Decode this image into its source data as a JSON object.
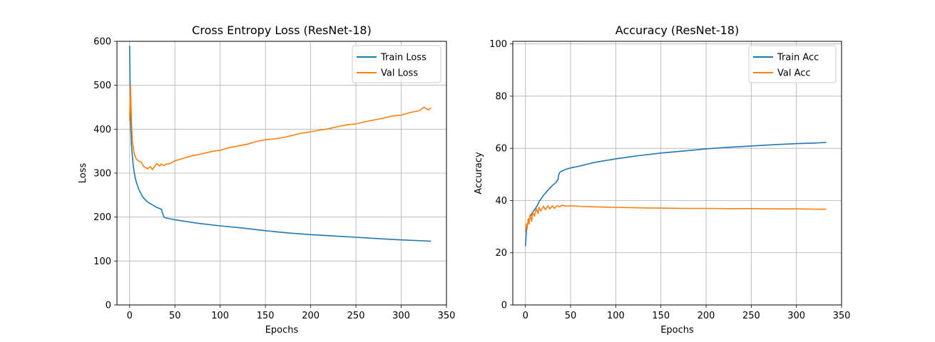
{
  "colors": {
    "train": "#1f77b4",
    "val": "#ff7f0e",
    "grid": "#b0b0b0"
  },
  "chart_data": [
    {
      "type": "line",
      "title": "Cross Entropy Loss (ResNet-18)",
      "xlabel": "Epochs",
      "ylabel": "Loss",
      "xlim": [
        -14,
        350
      ],
      "ylim": [
        0,
        600
      ],
      "xticks": [
        "0",
        "50",
        "100",
        "150",
        "200",
        "250",
        "300",
        "350"
      ],
      "yticks": [
        "0",
        "100",
        "200",
        "300",
        "400",
        "500",
        "600"
      ],
      "grid": true,
      "legend_position": "top-right",
      "series": [
        {
          "name": "Train Loss",
          "color": "#1f77b4",
          "x": [
            0,
            1,
            2,
            3,
            4,
            5,
            7,
            10,
            15,
            20,
            25,
            30,
            35,
            37,
            38,
            40,
            50,
            75,
            100,
            125,
            150,
            175,
            200,
            225,
            250,
            275,
            300,
            325,
            333
          ],
          "y": [
            590,
            420,
            365,
            338,
            318,
            302,
            282,
            263,
            244,
            234,
            228,
            222,
            218,
            205,
            200,
            198,
            194,
            186,
            180,
            175,
            169,
            164,
            160,
            157,
            154,
            151,
            148,
            146,
            145
          ]
        },
        {
          "name": "Val Loss",
          "color": "#ff7f0e",
          "x": [
            0,
            1,
            2,
            3,
            4,
            5,
            7,
            10,
            13,
            15,
            18,
            20,
            23,
            25,
            28,
            30,
            33,
            35,
            38,
            40,
            45,
            50,
            60,
            70,
            80,
            90,
            100,
            110,
            120,
            130,
            140,
            150,
            160,
            170,
            180,
            190,
            200,
            210,
            220,
            230,
            240,
            250,
            260,
            270,
            280,
            290,
            300,
            310,
            320,
            325,
            330,
            333
          ],
          "y": [
            420,
            500,
            420,
            372,
            360,
            345,
            333,
            327,
            325,
            316,
            312,
            310,
            315,
            308,
            316,
            322,
            316,
            321,
            317,
            320,
            322,
            328,
            334,
            340,
            344,
            349,
            352,
            358,
            362,
            366,
            372,
            376,
            378,
            381,
            386,
            391,
            394,
            398,
            401,
            406,
            410,
            412,
            417,
            421,
            425,
            430,
            432,
            438,
            442,
            450,
            444,
            449
          ]
        }
      ]
    },
    {
      "type": "line",
      "title": "Accuracy (ResNet-18)",
      "xlabel": "Epochs",
      "ylabel": "Accuracy",
      "xlim": [
        -14,
        350
      ],
      "ylim": [
        0,
        101
      ],
      "xticks": [
        "0",
        "50",
        "100",
        "150",
        "200",
        "250",
        "300",
        "350"
      ],
      "yticks": [
        "0",
        "20",
        "40",
        "60",
        "80",
        "100"
      ],
      "grid": true,
      "legend_position": "top-right",
      "series": [
        {
          "name": "Train Acc",
          "color": "#1f77b4",
          "x": [
            0,
            1,
            2,
            3,
            5,
            7,
            10,
            13,
            15,
            18,
            20,
            25,
            30,
            34,
            36,
            37,
            38,
            40,
            45,
            50,
            60,
            75,
            100,
            125,
            150,
            175,
            200,
            225,
            250,
            275,
            300,
            325,
            333
          ],
          "y": [
            22.5,
            28,
            30.5,
            32,
            33.5,
            35,
            36.5,
            38,
            39.5,
            41,
            42,
            44,
            45.8,
            47,
            48,
            50,
            50.8,
            51.3,
            52,
            52.5,
            53.2,
            54.5,
            56,
            57.2,
            58.2,
            59,
            59.8,
            60.4,
            60.9,
            61.4,
            61.8,
            62.1,
            62.3
          ]
        },
        {
          "name": "Val Acc",
          "color": "#ff7f0e",
          "x": [
            0,
            1,
            2,
            3,
            4,
            5,
            7,
            8,
            10,
            12,
            14,
            15,
            17,
            20,
            22,
            25,
            27,
            30,
            32,
            35,
            38,
            40,
            45,
            50,
            60,
            75,
            100,
            125,
            150,
            175,
            200,
            225,
            250,
            275,
            300,
            325,
            333
          ],
          "y": [
            28,
            31,
            29.5,
            33,
            31,
            34.5,
            32,
            35.5,
            34,
            37,
            35,
            37.5,
            36,
            37.8,
            36.5,
            38,
            36.8,
            38,
            37,
            38,
            37.6,
            38.2,
            37.9,
            38,
            37.8,
            37.6,
            37.4,
            37.2,
            37.1,
            37,
            37,
            36.9,
            36.9,
            36.8,
            36.8,
            36.7,
            36.7
          ]
        }
      ]
    }
  ]
}
